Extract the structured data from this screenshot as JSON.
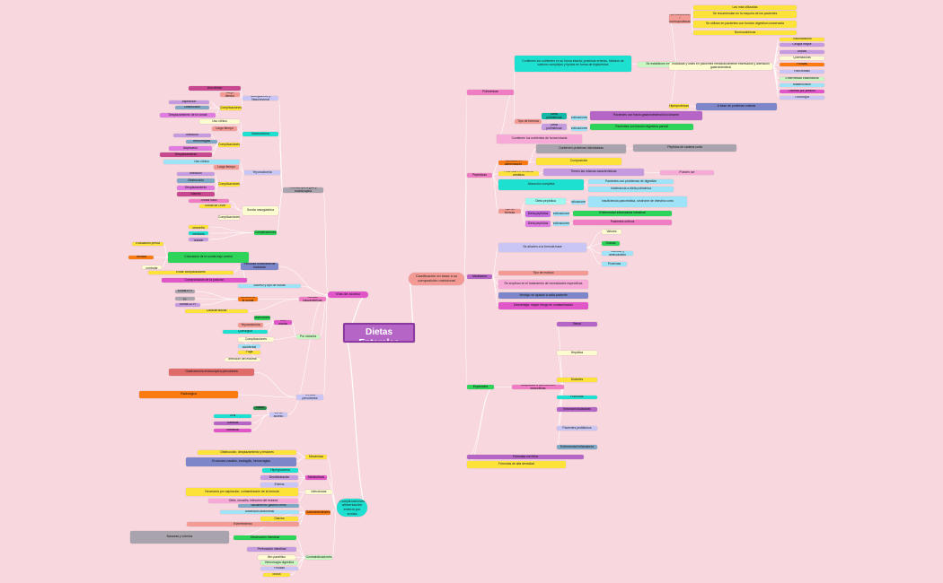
{
  "title": "Clasificación Dietas Enterales",
  "colors": {
    "background": "#f8d7de",
    "line": "#ffffff",
    "center": "#b565c6"
  },
  "nodes": [
    {
      "id": "c",
      "parent": null,
      "text": "Clasificación Dietas Enterales",
      "color": "#b565c6"
    },
    {
      "id": "va",
      "parent": "c",
      "text": "Vías de acceso",
      "color": "#e056c9"
    },
    {
      "id": "cn",
      "parent": "c",
      "text": "Clasificación en base a su composición nutricional",
      "color": "#f49a94"
    },
    {
      "id": "co",
      "parent": "c",
      "text": "Complicaciones alimentación enteral por sonda",
      "color": "#1ee0d0"
    },
    {
      "id": "r1",
      "parent": "cn",
      "text": "Poliméricas",
      "color": "#f07cc4"
    },
    {
      "id": "r1a",
      "parent": "r1",
      "text": "Contienen los nutrientes en su forma intacta: proteínas enteras, hidratos de carbono complejos y lípidos en forma de triglicéridos",
      "color": "#1ee0d0"
    },
    {
      "id": "r1s",
      "parent": "r1a",
      "text": "Se establecen en",
      "color": "#c9f7c1"
    },
    {
      "id": "r1n",
      "parent": "r1s",
      "text": "Normocalóricas / normoproteicas",
      "color": "#f49a94"
    },
    {
      "id": "r1n1",
      "parent": "r1n",
      "text": "Las más utilizadas",
      "color": "#fde23a"
    },
    {
      "id": "r1n2",
      "parent": "r1n",
      "text": "Se recomiendan en la mayoría de los pacientes",
      "color": "#fde23a"
    },
    {
      "id": "r1n3",
      "parent": "r1n",
      "text": "Se utilizan en pacientes con función digestiva conservada",
      "color": "#fde23a"
    },
    {
      "id": "r1n4",
      "parent": "r1n",
      "text": "Normocalóricas",
      "color": "#fde23a"
    },
    {
      "id": "r1i",
      "parent": "r1s",
      "text": "Indicadas y útiles en pacientes metabólicamente estresados y alteración gastrointestinal",
      "color": "#fdfbd0"
    },
    {
      "id": "r1i1",
      "parent": "r1i",
      "text": "Traumatismos",
      "color": "#fde23a"
    },
    {
      "id": "r1i2",
      "parent": "r1i",
      "text": "Cirugía mayor",
      "color": "#c59be0"
    },
    {
      "id": "r1i3",
      "parent": "r1i",
      "text": "Sepsis",
      "color": "#c59be0"
    },
    {
      "id": "r1i4",
      "parent": "r1i",
      "text": "Quemaduras",
      "color": "#fdfbd0"
    },
    {
      "id": "r1i5",
      "parent": "r1i",
      "text": "Fístulas",
      "color": "#fb7a12"
    },
    {
      "id": "r1i6",
      "parent": "r1i",
      "text": "Pancreatitis",
      "color": "#c9c6f5"
    },
    {
      "id": "r1i7",
      "parent": "r1i",
      "text": "Enfermedad inflamatoria",
      "color": "#c9f7c1"
    },
    {
      "id": "r1i8",
      "parent": "r1i",
      "text": "Malabsorción",
      "color": "#9ee3f8"
    },
    {
      "id": "r1i9",
      "parent": "r1i",
      "text": "Úlceras por presión",
      "color": "#e056c9"
    },
    {
      "id": "r1i10",
      "parent": "r1i",
      "text": "Oncología",
      "color": "#c9c6f5"
    },
    {
      "id": "r1h",
      "parent": "r1s",
      "text": "Hiperproteicas",
      "color": "#fde23a"
    },
    {
      "id": "r1h1",
      "parent": "r1h",
      "text": "A base de proteínas enteras",
      "color": "#7c86c9"
    },
    {
      "id": "r1t",
      "parent": "r1",
      "text": "Tipo de fórmula",
      "color": "#f49a94"
    },
    {
      "id": "r1t1",
      "parent": "r1t",
      "text": "Dieta poliméricas",
      "color": "#14b8a6"
    },
    {
      "id": "r1t1i",
      "parent": "r1t1",
      "text": "Indicaciones",
      "color": "#9ee3f8"
    },
    {
      "id": "r1t1d",
      "parent": "r1t1i",
      "text": "Pacientes con tracto gastrointestinal funcionante",
      "color": "#b565c6"
    },
    {
      "id": "r1t2",
      "parent": "r1t",
      "text": "Dieta poliméricas",
      "color": "#c59be0"
    },
    {
      "id": "r1t2i",
      "parent": "r1t2",
      "text": "Indicaciones",
      "color": "#9ee3f8"
    },
    {
      "id": "r1t2d",
      "parent": "r1t2i",
      "text": "Pacientes con función digestiva parcial",
      "color": "#2ed45a"
    },
    {
      "id": "r1c",
      "parent": "r1",
      "text": "Contienen los nutrientes de forma intacta",
      "color": "#f7a9d8"
    },
    {
      "id": "r2",
      "parent": "cn",
      "text": "Peptídicas",
      "color": "#f07cc4"
    },
    {
      "id": "r2a",
      "parent": "r2",
      "text": "Cambios en alimentación",
      "color": "#fb7a12"
    },
    {
      "id": "r2a1",
      "parent": "r2a",
      "text": "Composición",
      "color": "#fde23a"
    },
    {
      "id": "r2a2",
      "parent": "r2a",
      "text": "Contienen proteínas hidrolizadas",
      "color": "#a9a3ad"
    },
    {
      "id": "r2a3",
      "parent": "r2a2",
      "text": "Péptidos de cadena corta",
      "color": "#a9a3ad"
    },
    {
      "id": "r2b",
      "parent": "r2",
      "text": "Proteínas en forma de péptidos",
      "color": "#fde23a"
    },
    {
      "id": "r2b1",
      "parent": "r2b",
      "text": "Tienen las mismas características",
      "color": "#c59be0"
    },
    {
      "id": "r2b2",
      "parent": "r2b1",
      "text": "Pueden ser",
      "color": "#f7a9d8"
    },
    {
      "id": "r2c",
      "parent": "r2",
      "text": "Absorción completa",
      "color": "#1ee0d0"
    },
    {
      "id": "r2c1",
      "parent": "r2c",
      "text": "Pacientes con problemas de digestión",
      "color": "#9ee3f8"
    },
    {
      "id": "r2c2",
      "parent": "r2c",
      "text": "Intolerancia a dieta polimérica",
      "color": "#9ee3f8"
    },
    {
      "id": "r2t",
      "parent": "r2",
      "text": "Tipo de fórmula",
      "color": "#f49a94"
    },
    {
      "id": "r2t1",
      "parent": "r2t",
      "text": "Dieta peptídica",
      "color": "#9ef8f0"
    },
    {
      "id": "r2t1i",
      "parent": "r2t1",
      "text": "Indicaciones",
      "color": "#9ee3f8"
    },
    {
      "id": "r2t1d",
      "parent": "r2t1i",
      "text": "Insuficiencia pancreática, síndrome de intestino corto",
      "color": "#9ee3f8"
    },
    {
      "id": "r2t2",
      "parent": "r2t",
      "text": "Dieta peptídica",
      "color": "#c56be0"
    },
    {
      "id": "r2t2i",
      "parent": "r2t2",
      "text": "Indicaciones",
      "color": "#9ee3f8"
    },
    {
      "id": "r2t2d",
      "parent": "r2t2i",
      "text": "Enfermedad inflamatoria intestinal",
      "color": "#2ed45a"
    },
    {
      "id": "r2t3",
      "parent": "r2t",
      "text": "Dieta peptídica",
      "color": "#e07ce0"
    },
    {
      "id": "r2t3i",
      "parent": "r2t3",
      "text": "Indicaciones",
      "color": "#9ee3f8"
    },
    {
      "id": "r2t3d",
      "parent": "r2t3i",
      "text": "Pacientes críticos",
      "color": "#f07cc4"
    },
    {
      "id": "r3",
      "parent": "cn",
      "text": "Modulares",
      "color": "#b565c6"
    },
    {
      "id": "r3a",
      "parent": "r3",
      "text": "Se añaden a la fórmula base",
      "color": "#c9c6f5"
    },
    {
      "id": "r3a1",
      "parent": "r3a",
      "text": "Valores",
      "color": "#fdfbd0"
    },
    {
      "id": "r3a2",
      "parent": "r3a",
      "text": "Grasas",
      "color": "#2ed45a"
    },
    {
      "id": "r3a3",
      "parent": "r3a",
      "text": "Glucosa y aminoácidos",
      "color": "#9ee3f8"
    },
    {
      "id": "r3a4",
      "parent": "r3a",
      "text": "Proteínas",
      "color": "#9ee3f8"
    },
    {
      "id": "r3b",
      "parent": "r3",
      "text": "Tipo de módulo",
      "color": "#f49a94"
    },
    {
      "id": "r3c",
      "parent": "r3",
      "text": "Se emplean en el tratamiento de necesidades específicas",
      "color": "#f7a9d8"
    },
    {
      "id": "r3d",
      "parent": "r3",
      "text": "Ventaja: se ajustan a cada paciente",
      "color": "#7c86c9"
    },
    {
      "id": "r3e",
      "parent": "r3",
      "text": "Desventaja: mayor riesgo de contaminación",
      "color": "#e056c9"
    },
    {
      "id": "r4",
      "parent": "cn",
      "text": "Especiales",
      "color": "#2ed45a"
    },
    {
      "id": "r4a",
      "parent": "r4",
      "text": "Adaptadas a alteraciones específicas",
      "color": "#f07cc4"
    },
    {
      "id": "r4a1",
      "parent": "r4a",
      "text": "Renal",
      "color": "#b565c6"
    },
    {
      "id": "r4a2",
      "parent": "r4a",
      "text": "Hepática",
      "color": "#fdfbd0"
    },
    {
      "id": "r4a3",
      "parent": "r4a",
      "text": "Diabetes",
      "color": "#fde23a"
    },
    {
      "id": "r4a4",
      "parent": "r4a",
      "text": "Pulmonar",
      "color": "#1ee0d0"
    },
    {
      "id": "r4a5",
      "parent": "r4a",
      "text": "Inmunomoduladoras",
      "color": "#b565c6"
    },
    {
      "id": "r4a6",
      "parent": "r4a",
      "text": "Pacientes pediátricos",
      "color": "#c9c6f5"
    },
    {
      "id": "r4a7",
      "parent": "r4a",
      "text": "Enfermedad inflamatoria",
      "color": "#7fa8c6"
    },
    {
      "id": "r4b",
      "parent": "r4",
      "text": "Fórmulas con fibra",
      "color": "#b565c6"
    },
    {
      "id": "r4c",
      "parent": "r4",
      "text": "Fórmulas de alta densidad",
      "color": "#fde23a"
    },
    {
      "id": "l0",
      "parent": "va",
      "text": "Técnica quirúrgica y endoscópica",
      "color": "#a9a3ad"
    },
    {
      "id": "l1",
      "parent": "l0",
      "text": "Nasogástrica y Nasoyeyunal",
      "color": "#c9c6f5"
    },
    {
      "id": "l1a",
      "parent": "l1",
      "text": "Uso clínico",
      "color": "#c8488f"
    },
    {
      "id": "l1b",
      "parent": "l1",
      "text": "Largo tiempo",
      "color": "#f49a94"
    },
    {
      "id": "l1c",
      "parent": "l1",
      "text": "Complicaciones",
      "color": "#fde23a"
    },
    {
      "id": "l1c1",
      "parent": "l1c",
      "text": "Aspiración",
      "color": "#c59be0"
    },
    {
      "id": "l1c2",
      "parent": "l1c",
      "text": "Obstrucción",
      "color": "#7fa8c6"
    },
    {
      "id": "l1c3",
      "parent": "l1c",
      "text": "Desplazamiento de la sonda",
      "color": "#e07ce0"
    },
    {
      "id": "l2",
      "parent": "l0",
      "text": "Gastrostomía",
      "color": "#1ee0d0"
    },
    {
      "id": "l2a",
      "parent": "l2",
      "text": "Uso clínico",
      "color": "#fdfbd0"
    },
    {
      "id": "l2b",
      "parent": "l2",
      "text": "Largo tiempo",
      "color": "#f49a94"
    },
    {
      "id": "l2c",
      "parent": "l2",
      "text": "Complicaciones",
      "color": "#fde23a"
    },
    {
      "id": "l2c1",
      "parent": "l2c",
      "text": "Infección",
      "color": "#c59be0"
    },
    {
      "id": "l2c2",
      "parent": "l2c",
      "text": "Hemorragias",
      "color": "#7fa8c6"
    },
    {
      "id": "l2c3",
      "parent": "l2c",
      "text": "Aspiración",
      "color": "#e07ce0"
    },
    {
      "id": "l2c4",
      "parent": "l2c",
      "text": "Desplazamiento",
      "color": "#c8488f"
    },
    {
      "id": "l3",
      "parent": "l0",
      "text": "Yeyunostomía",
      "color": "#c9c6f5"
    },
    {
      "id": "l3a",
      "parent": "l3",
      "text": "Uso clínico",
      "color": "#9ee3f8"
    },
    {
      "id": "l3b",
      "parent": "l3",
      "text": "Largo tiempo",
      "color": "#f49a94"
    },
    {
      "id": "l3c",
      "parent": "l3",
      "text": "Complicaciones",
      "color": "#fde23a"
    },
    {
      "id": "l3c1",
      "parent": "l3c",
      "text": "Infección",
      "color": "#c59be0"
    },
    {
      "id": "l3c2",
      "parent": "l3c",
      "text": "Obstrucción",
      "color": "#7fa8c6"
    },
    {
      "id": "l3c3",
      "parent": "l3c",
      "text": "Desplazamiento",
      "color": "#e07ce0"
    },
    {
      "id": "l3c4",
      "parent": "l3c",
      "text": "Diarrea",
      "color": "#c8488f"
    },
    {
      "id": "l4",
      "parent": "l0",
      "text": "Sonda nasogástrica",
      "color": "#fdfbd0"
    },
    {
      "id": "l4a",
      "parent": "l4",
      "text": "Sonda de Levin",
      "color": "#fde23a"
    },
    {
      "id": "l4b",
      "parent": "l4",
      "text": "Complicaciones",
      "color": "#fdfbd0"
    },
    {
      "id": "l4c",
      "parent": "l4",
      "text": "Sonda naso",
      "color": "#f07cc4"
    },
    {
      "id": "l5",
      "parent": "l0",
      "text": "Complicaciones",
      "color": "#2ed45a"
    },
    {
      "id": "l5a",
      "parent": "l5",
      "text": "Sonda pequeña",
      "color": "#fde23a"
    },
    {
      "id": "l5b",
      "parent": "l5",
      "text": "Sonda mediana",
      "color": "#1ee0d0"
    },
    {
      "id": "l5c",
      "parent": "l5",
      "text": "Sonda grande",
      "color": "#c59be0"
    },
    {
      "id": "l6",
      "parent": "va",
      "text": "Técnicas mínimamente invasivas",
      "color": "#7c86c9"
    },
    {
      "id": "l6a",
      "parent": "l6",
      "text": "Colocación de la sonda bajo control",
      "color": "#2ed45a"
    },
    {
      "id": "l6a1",
      "parent": "l6a",
      "text": "Evaluación previa",
      "color": "#fde23a"
    },
    {
      "id": "l6a2",
      "parent": "l6a",
      "text": "Técnica",
      "color": "#fb7a12"
    },
    {
      "id": "l6a3",
      "parent": "l6a",
      "text": "Para controlar",
      "color": "#fdfbd0"
    },
    {
      "id": "l6b",
      "parent": "l6",
      "text": "Evitar complicaciones",
      "color": "#fde23a"
    },
    {
      "id": "l6c",
      "parent": "l6",
      "text": "Comprobación de la posición",
      "color": "#e056c9"
    },
    {
      "id": "l7",
      "parent": "va",
      "text": "Acceso y tipo de sonda",
      "color": "#9ee3f8"
    },
    {
      "id": "l8",
      "parent": "va",
      "text": "Sondas nasoentéricas",
      "color": "#f07cc4"
    },
    {
      "id": "l8a",
      "parent": "l8",
      "text": "Tamaño de la sonda",
      "color": "#fb7a12"
    },
    {
      "id": "l8a1",
      "parent": "l8a",
      "text": "Sonda 8 Fr",
      "color": "#a9a3ad"
    },
    {
      "id": "l8a2",
      "parent": "l8a",
      "text": "Sonda 10 Fr",
      "color": "#a9a3ad"
    },
    {
      "id": "l8a3",
      "parent": "l8a",
      "text": "Sonda 12 Fr",
      "color": "#c59be0"
    },
    {
      "id": "l8b",
      "parent": "l8",
      "text": "Características",
      "color": "#fde23a"
    },
    {
      "id": "l9",
      "parent": "va",
      "text": "Por ostomía",
      "color": "#c9f7c1"
    },
    {
      "id": "l9a",
      "parent": "l9",
      "text": "Con sonda",
      "color": "#e056c9"
    },
    {
      "id": "l9a1",
      "parent": "l9a",
      "text": "Gastrostomía",
      "color": "#2ed45a"
    },
    {
      "id": "l9a2",
      "parent": "l9a",
      "text": "Yeyunostomía",
      "color": "#f49a94"
    },
    {
      "id": "l9a3",
      "parent": "l9a",
      "text": "Quirúrgica",
      "color": "#1ee0d0"
    },
    {
      "id": "l9b",
      "parent": "l9",
      "text": "Complicaciones",
      "color": "#fdfbd0"
    },
    {
      "id": "l9b1",
      "parent": "l9b",
      "text": "Salida accidental",
      "color": "#9ee3f8"
    },
    {
      "id": "l9b2",
      "parent": "l9b",
      "text": "Fuga",
      "color": "#fde23a"
    },
    {
      "id": "l9b3",
      "parent": "l9b",
      "text": "Infección del estoma",
      "color": "#fdfbd0"
    },
    {
      "id": "l10",
      "parent": "va",
      "text": "Técnica percutánea",
      "color": "#c9c6f5"
    },
    {
      "id": "l10a",
      "parent": "l10",
      "text": "Gastrostomía endoscópica percutánea",
      "color": "#e06b6b"
    },
    {
      "id": "l10b",
      "parent": "l10",
      "text": "Radiológica",
      "color": "#fb7a12"
    },
    {
      "id": "l11",
      "parent": "va",
      "text": "Vía de acceso",
      "color": "#c9c6f5"
    },
    {
      "id": "l11a",
      "parent": "l11",
      "text": "Nasal",
      "color": "#2a8a4a"
    },
    {
      "id": "l11b",
      "parent": "l11",
      "text": "Oral",
      "color": "#1ee0d0"
    },
    {
      "id": "l11c",
      "parent": "l11",
      "text": "Gástrica",
      "color": "#b565c6"
    },
    {
      "id": "l11d",
      "parent": "l11",
      "text": "Intestinal",
      "color": "#e056c9"
    },
    {
      "id": "b1",
      "parent": "co",
      "text": "Mecánicas",
      "color": "#fde23a"
    },
    {
      "id": "b1a",
      "parent": "b1",
      "text": "Obstrucción, desplazamiento y lesiones",
      "color": "#fde23a"
    },
    {
      "id": "b1b",
      "parent": "b1",
      "text": "Erosiones nasales, esofagitis, hemorragias",
      "color": "#7c86c9"
    },
    {
      "id": "b2",
      "parent": "co",
      "text": "Metabólicas",
      "color": "#e056c9"
    },
    {
      "id": "b2a",
      "parent": "b2",
      "text": "Hiperglucemia",
      "color": "#1ee0d0"
    },
    {
      "id": "b2b",
      "parent": "b2",
      "text": "Deshidratación",
      "color": "#c59be0"
    },
    {
      "id": "b2c",
      "parent": "b2",
      "text": "Edema",
      "color": "#c9c6f5"
    },
    {
      "id": "b3",
      "parent": "co",
      "text": "Infecciosas",
      "color": "#fdfbd0"
    },
    {
      "id": "b3a",
      "parent": "b3",
      "text": "Neumonía por aspiración, contaminación de la fórmula",
      "color": "#fde23a"
    },
    {
      "id": "b3b",
      "parent": "b3",
      "text": "Otitis, sinusitis, infección del estoma",
      "color": "#f7a9d8"
    },
    {
      "id": "b4",
      "parent": "co",
      "text": "Gastrointestinales",
      "color": "#fb7a12"
    },
    {
      "id": "b4a",
      "parent": "b4",
      "text": "Vaciamiento gástrico lento",
      "color": "#7fa8c6"
    },
    {
      "id": "b4b",
      "parent": "b4",
      "text": "Distensión abdominal",
      "color": "#9ee3f8"
    },
    {
      "id": "b4c",
      "parent": "b4",
      "text": "Diarrea",
      "color": "#fde23a"
    },
    {
      "id": "b4d",
      "parent": "b4",
      "text": "Estreñimiento",
      "color": "#f49a94"
    },
    {
      "id": "b4e",
      "parent": "b4",
      "text": "Náuseas y vómitos",
      "color": "#a9a3ad"
    },
    {
      "id": "b5",
      "parent": "co",
      "text": "Contraindicaciones",
      "color": "#c9f7c1"
    },
    {
      "id": "b5a",
      "parent": "b5",
      "text": "Obstrucción intestinal",
      "color": "#2ed45a"
    },
    {
      "id": "b5b",
      "parent": "b5",
      "text": "Perforación intestinal",
      "color": "#c59be0"
    },
    {
      "id": "b5c",
      "parent": "b5",
      "text": "Íleo paralítico",
      "color": "#fdfbd0"
    },
    {
      "id": "b5d",
      "parent": "b5",
      "text": "Hemorragia digestiva",
      "color": "#c9f7c1"
    },
    {
      "id": "b5e",
      "parent": "b5",
      "text": "Fístulas",
      "color": "#c9c6f5"
    },
    {
      "id": "b5f",
      "parent": "b5",
      "text": "Shock",
      "color": "#fde23a"
    }
  ]
}
